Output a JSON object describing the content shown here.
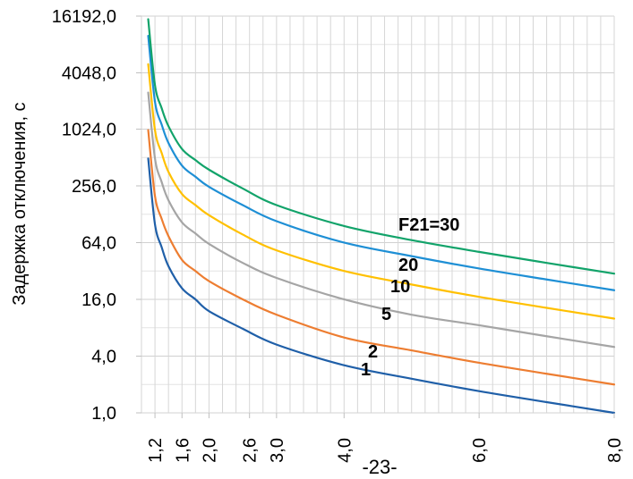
{
  "chart_data": {
    "type": "line",
    "title": "",
    "ylabel": "Задержка отключения, с",
    "xlabel": "",
    "yscale": "log2",
    "ylim": [
      1,
      16192
    ],
    "xlim": [
      1.0,
      8.0
    ],
    "grid": true,
    "y_ticks": [
      {
        "value": 1,
        "label": "1,0"
      },
      {
        "value": 4,
        "label": "4,0"
      },
      {
        "value": 16,
        "label": "16,0"
      },
      {
        "value": 64,
        "label": "64,0"
      },
      {
        "value": 256,
        "label": "256,0"
      },
      {
        "value": 1024,
        "label": "1024,0"
      },
      {
        "value": 4048,
        "label": "4048,0"
      },
      {
        "value": 16192,
        "label": "16192,0"
      }
    ],
    "x_ticks": [
      {
        "value": 1.2,
        "label": "1,2"
      },
      {
        "value": 1.6,
        "label": "1,6"
      },
      {
        "value": 2.0,
        "label": "2,0"
      },
      {
        "value": 2.6,
        "label": "2,6"
      },
      {
        "value": 3.0,
        "label": "3,0"
      },
      {
        "value": 4.0,
        "label": "4,0"
      },
      {
        "value": 6.0,
        "label": "6,0"
      },
      {
        "value": 8.0,
        "label": "8,0"
      }
    ],
    "x": [
      1.1,
      1.2,
      1.3,
      1.4,
      1.6,
      1.8,
      2.0,
      2.5,
      3.0,
      4.0,
      5.0,
      6.0,
      7.0,
      8.0
    ],
    "series": [
      {
        "label": "1",
        "color": "#1f5fa8",
        "values": [
          500,
          100,
          57,
          36,
          21,
          16,
          12,
          7.8,
          5.3,
          3.2,
          2.3,
          1.7,
          1.3,
          1.0
        ]
      },
      {
        "label": "2",
        "color": "#ed7d31",
        "values": [
          1000,
          200,
          114,
          75,
          42,
          32,
          25,
          16,
          11,
          6.3,
          4.6,
          3.4,
          2.6,
          2.0
        ]
      },
      {
        "label": "5",
        "color": "#a5a5a5",
        "values": [
          2500,
          500,
          280,
          180,
          105,
          80,
          62,
          39,
          27,
          16,
          11,
          8.5,
          6.5,
          5.0
        ]
      },
      {
        "label": "10",
        "color": "#ffc000",
        "values": [
          5000,
          1000,
          570,
          360,
          210,
          160,
          125,
          78,
          53,
          32,
          23,
          17,
          13,
          10
        ]
      },
      {
        "label": "20",
        "color": "#1e8fd5",
        "values": [
          10000,
          2000,
          1140,
          730,
          420,
          320,
          250,
          160,
          108,
          64,
          46,
          34,
          26,
          20
        ]
      },
      {
        "label": "F21=30",
        "color": "#12a36a",
        "values": [
          15000,
          3000,
          1700,
          1100,
          630,
          480,
          380,
          240,
          160,
          96,
          68,
          51,
          39,
          30
        ]
      }
    ]
  },
  "footer": {
    "page_number": "-23-"
  }
}
